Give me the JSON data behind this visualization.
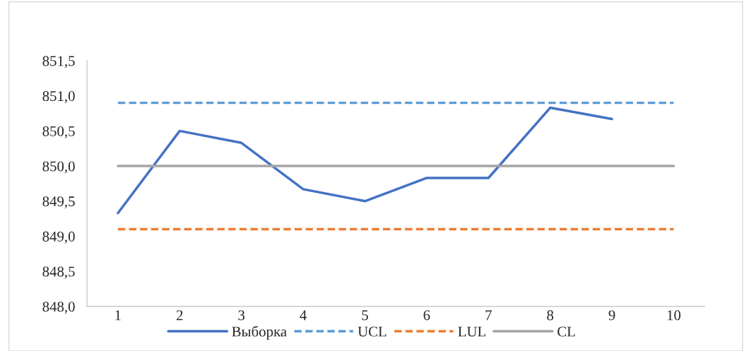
{
  "chart_data": {
    "type": "line",
    "categories": [
      "1",
      "2",
      "3",
      "4",
      "5",
      "6",
      "7",
      "8",
      "9",
      "10"
    ],
    "series": [
      {
        "name": "Выборка",
        "color": "#4472c4",
        "line_style": "solid",
        "values": [
          849.33,
          850.5,
          850.33,
          849.67,
          849.5,
          849.83,
          849.83,
          850.83,
          850.67,
          null
        ]
      },
      {
        "name": "UCL",
        "color": "#5b9bd5",
        "line_style": "dashed",
        "values": [
          850.9,
          850.9,
          850.9,
          850.9,
          850.9,
          850.9,
          850.9,
          850.9,
          850.9,
          850.9
        ]
      },
      {
        "name": "LUL",
        "color": "#ed7d31",
        "line_style": "dashed",
        "values": [
          849.1,
          849.1,
          849.1,
          849.1,
          849.1,
          849.1,
          849.1,
          849.1,
          849.1,
          849.1
        ]
      },
      {
        "name": "CL",
        "color": "#a5a5a5",
        "line_style": "solid",
        "values": [
          850.0,
          850.0,
          850.0,
          850.0,
          850.0,
          850.0,
          850.0,
          850.0,
          850.0,
          850.0
        ]
      }
    ],
    "ylim": [
      848.0,
      851.5
    ],
    "yticks": [
      {
        "value": 848.0,
        "label": "848,0"
      },
      {
        "value": 848.5,
        "label": "848,5"
      },
      {
        "value": 849.0,
        "label": "849,0"
      },
      {
        "value": 849.5,
        "label": "849,5"
      },
      {
        "value": 850.0,
        "label": "850,0"
      },
      {
        "value": 850.5,
        "label": "850,5"
      },
      {
        "value": 851.0,
        "label": "851,0"
      },
      {
        "value": 851.5,
        "label": "851,5"
      }
    ],
    "grid": false,
    "legend": "bottom",
    "marker": "none"
  }
}
